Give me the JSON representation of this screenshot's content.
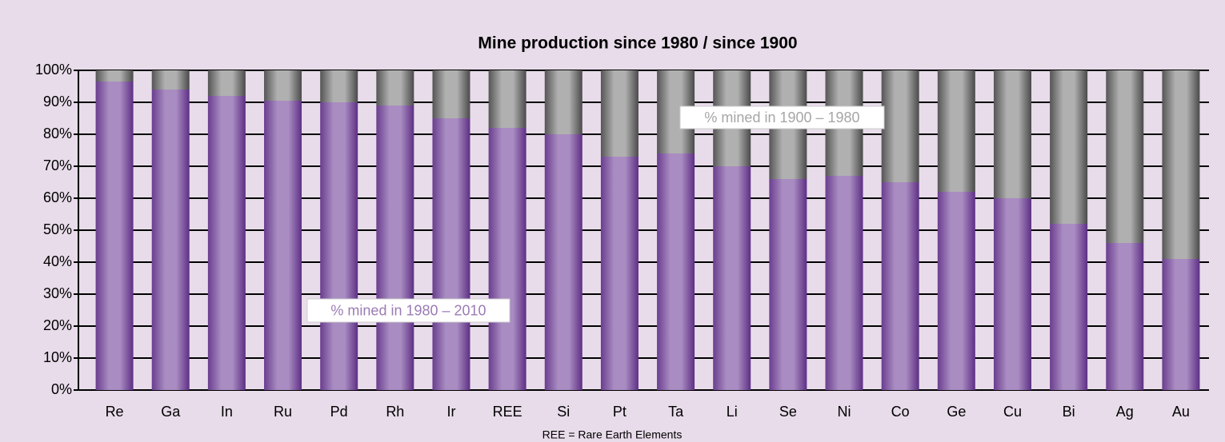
{
  "chart_data": {
    "type": "stacked_bar",
    "title": "Mine production since 1980 / since 1900",
    "footnote": "REE = Rare Earth Elements",
    "categories": [
      "Re",
      "Ga",
      "In",
      "Ru",
      "Pd",
      "Rh",
      "Ir",
      "REE",
      "Si",
      "Pt",
      "Ta",
      "Li",
      "Se",
      "Ni",
      "Co",
      "Ge",
      "Cu",
      "Bi",
      "Ag",
      "Au"
    ],
    "series": [
      {
        "name": "% mined in 1980 – 2010",
        "color": "#9b7bb5",
        "values": [
          96.5,
          94,
          92,
          90.5,
          90,
          89,
          85,
          82,
          80,
          73,
          74,
          70,
          66,
          67,
          65,
          62,
          60,
          52,
          46,
          41
        ]
      },
      {
        "name": "% mined in 1900 – 1980",
        "color": "#a0a0a0",
        "values": [
          3.5,
          6,
          8,
          9.5,
          10,
          11,
          15,
          18,
          20,
          27,
          26,
          30,
          34,
          33,
          35,
          38,
          40,
          48,
          54,
          59
        ]
      }
    ],
    "ylim": [
      0,
      100
    ],
    "yticks": [
      {
        "value": 0,
        "label": "0%"
      },
      {
        "value": 10,
        "label": "10%"
      },
      {
        "value": 20,
        "label": "20%"
      },
      {
        "value": 30,
        "label": "30%"
      },
      {
        "value": 40,
        "label": "40%"
      },
      {
        "value": 50,
        "label": "50%"
      },
      {
        "value": 60,
        "label": "60%"
      },
      {
        "value": 70,
        "label": "70%"
      },
      {
        "value": 80,
        "label": "80%"
      },
      {
        "value": 90,
        "label": "90%"
      },
      {
        "value": 100,
        "label": "100%"
      }
    ],
    "grid": true
  }
}
